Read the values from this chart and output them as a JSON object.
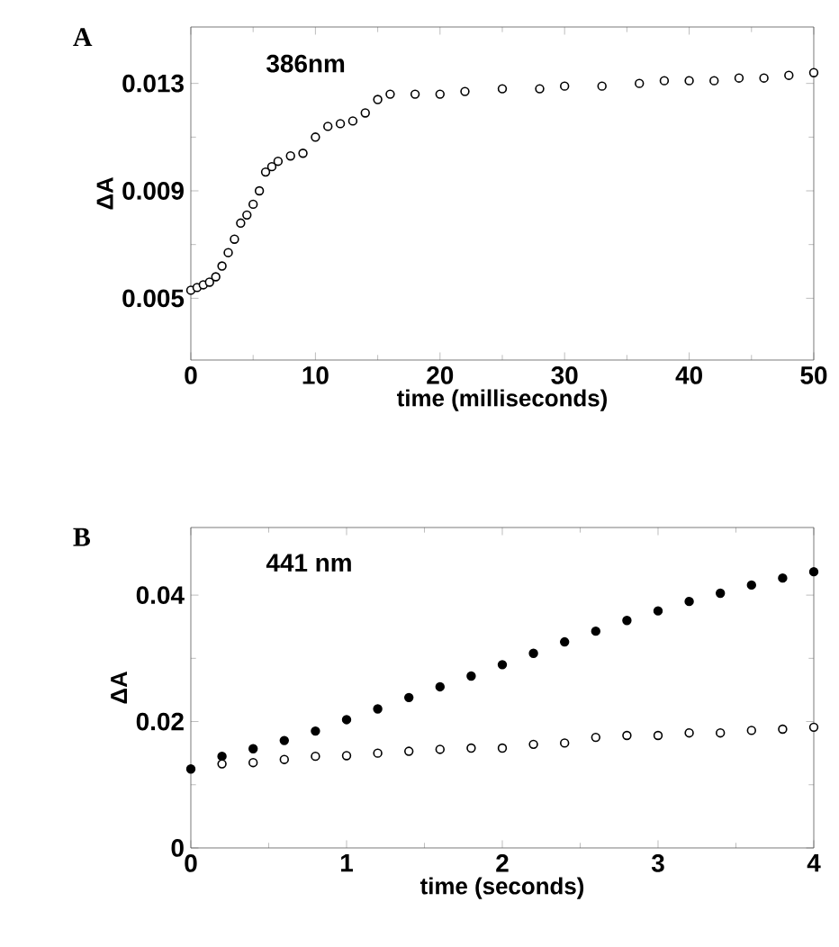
{
  "chart_data": [
    {
      "type": "scatter",
      "xlabel": "time (milliseconds)",
      "ylabel": "ΔA",
      "annotations": [
        "A",
        "386nm"
      ],
      "xlim": [
        0,
        50
      ],
      "ylim": [
        0.0027,
        0.0151
      ],
      "xticks": [
        0,
        10,
        20,
        30,
        40,
        50
      ],
      "yticks": [
        0.005,
        0.009,
        0.013
      ],
      "marker": "circle",
      "series": [
        {
          "color": "#000000",
          "x": [
            0,
            0.5,
            1,
            1.5,
            2,
            2.5,
            3,
            3.5,
            4,
            4.5,
            5,
            5.5,
            6,
            6.5,
            7,
            8,
            9,
            10,
            11,
            12,
            13,
            14,
            15,
            16,
            18,
            20,
            22,
            25,
            28,
            30,
            33,
            36,
            38,
            40,
            42,
            44,
            46,
            48,
            50
          ],
          "values": [
            0.0053,
            0.0054,
            0.0055,
            0.0056,
            0.0058,
            0.0062,
            0.0067,
            0.0072,
            0.0078,
            0.0081,
            0.0085,
            0.009,
            0.0097,
            0.0099,
            0.0101,
            0.0103,
            0.0104,
            0.011,
            0.0114,
            0.0115,
            0.0116,
            0.0119,
            0.0124,
            0.0126,
            0.0126,
            0.0126,
            0.0127,
            0.0128,
            0.0128,
            0.0129,
            0.0129,
            0.013,
            0.0131,
            0.0131,
            0.0131,
            0.0132,
            0.0132,
            0.0133,
            0.0134
          ]
        }
      ]
    },
    {
      "type": "scatter",
      "xlabel": "time (seconds)",
      "ylabel": "ΔA",
      "annotations": [
        "B",
        "441 nm"
      ],
      "xlim": [
        0,
        4
      ],
      "ylim": [
        0,
        0.0507
      ],
      "xticks": [
        0,
        1,
        2,
        3,
        4
      ],
      "yticks": [
        0,
        0.02,
        0.04
      ],
      "marker": "circle",
      "series": [
        {
          "color": "#000000",
          "x": [
            0,
            0.2,
            0.4,
            0.6,
            0.8,
            1.0,
            1.2,
            1.4,
            1.6,
            1.8,
            2.0,
            2.2,
            2.4,
            2.6,
            2.8,
            3.0,
            3.2,
            3.4,
            3.6,
            3.8,
            4.0
          ],
          "values": [
            0.0125,
            0.0145,
            0.0157,
            0.017,
            0.0185,
            0.0203,
            0.022,
            0.0238,
            0.0255,
            0.0272,
            0.029,
            0.0308,
            0.0326,
            0.0343,
            0.036,
            0.0375,
            0.039,
            0.0403,
            0.0416,
            0.0427,
            0.0437
          ]
        },
        {
          "color": "#000000",
          "x": [
            0.2,
            0.4,
            0.6,
            0.8,
            1.0,
            1.2,
            1.4,
            1.6,
            1.8,
            2.0,
            2.2,
            2.4,
            2.6,
            2.8,
            3.0,
            3.2,
            3.4,
            3.6,
            3.8,
            4.0
          ],
          "values": [
            0.0133,
            0.0135,
            0.014,
            0.0145,
            0.0146,
            0.015,
            0.0153,
            0.0156,
            0.0158,
            0.0158,
            0.0164,
            0.0166,
            0.0175,
            0.0178,
            0.0178,
            0.0182,
            0.0182,
            0.0186,
            0.0188,
            0.0191
          ]
        }
      ]
    }
  ]
}
